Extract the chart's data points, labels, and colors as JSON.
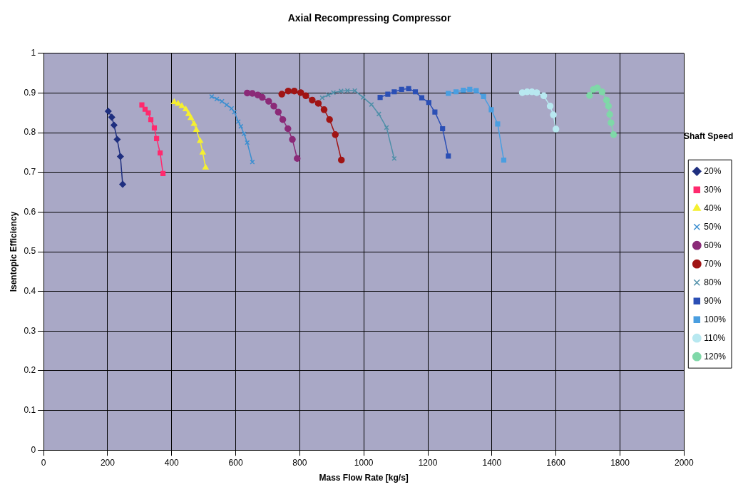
{
  "chart_data": {
    "type": "line",
    "title": "Axial Recompressing Compressor",
    "xlabel": "Mass Flow Rate [kg/s]",
    "ylabel": "Isentopic Efficiency",
    "legend_title": "Shaft Speed",
    "legend": "right",
    "grid": true,
    "xlim": [
      0,
      2000
    ],
    "xticks": [
      0,
      200,
      400,
      600,
      800,
      1000,
      1200,
      1400,
      1600,
      1800,
      2000
    ],
    "ylim": [
      0,
      1
    ],
    "yticks": [
      0,
      0.1,
      0.2,
      0.3,
      0.4,
      0.5,
      0.6,
      0.7,
      0.8,
      0.9,
      1
    ],
    "series": [
      {
        "name": "20%",
        "color": "#1f2f7f",
        "marker": "diamond",
        "x": [
          202,
          213,
          220,
          230,
          240,
          247
        ],
        "values": [
          0.854,
          0.839,
          0.819,
          0.783,
          0.74,
          0.67
        ]
      },
      {
        "name": "30%",
        "color": "#ff2a6e",
        "marker": "square",
        "x": [
          307,
          317,
          327,
          335,
          346,
          353,
          364,
          373
        ],
        "values": [
          0.87,
          0.859,
          0.85,
          0.833,
          0.812,
          0.785,
          0.749,
          0.697
        ]
      },
      {
        "name": "40%",
        "color": "#f5f030",
        "marker": "triangle",
        "x": [
          408,
          420,
          432,
          444,
          453,
          460,
          470,
          477,
          489,
          497,
          506
        ],
        "values": [
          0.877,
          0.873,
          0.867,
          0.859,
          0.847,
          0.837,
          0.822,
          0.807,
          0.779,
          0.75,
          0.712
        ]
      },
      {
        "name": "50%",
        "color": "#3c8fd0",
        "marker": "cross",
        "x": [
          525,
          541,
          557,
          572,
          587,
          596,
          608,
          616,
          626,
          636,
          652
        ],
        "values": [
          0.891,
          0.885,
          0.879,
          0.87,
          0.861,
          0.852,
          0.828,
          0.816,
          0.797,
          0.775,
          0.726
        ]
      },
      {
        "name": "60%",
        "color": "#8b2a78",
        "marker": "circle",
        "x": [
          636,
          652,
          669,
          683,
          703,
          719,
          733,
          747,
          763,
          777,
          792
        ],
        "values": [
          0.9,
          0.899,
          0.895,
          0.889,
          0.879,
          0.867,
          0.852,
          0.833,
          0.81,
          0.783,
          0.735
        ]
      },
      {
        "name": "70%",
        "color": "#a01414",
        "marker": "circle",
        "x": [
          744,
          764,
          783,
          803,
          819,
          839,
          858,
          876,
          893,
          911,
          930
        ],
        "values": [
          0.897,
          0.905,
          0.905,
          0.901,
          0.893,
          0.882,
          0.874,
          0.858,
          0.833,
          0.795,
          0.731
        ]
      },
      {
        "name": "80%",
        "color": "#4f8fa8",
        "marker": "cross",
        "x": [
          870,
          889,
          905,
          929,
          949,
          972,
          998,
          1024,
          1047,
          1071,
          1095
        ],
        "values": [
          0.888,
          0.895,
          0.901,
          0.905,
          0.906,
          0.906,
          0.889,
          0.871,
          0.847,
          0.813,
          0.735
        ]
      },
      {
        "name": "90%",
        "color": "#2b4fb5",
        "marker": "square",
        "x": [
          1051,
          1075,
          1095,
          1118,
          1140,
          1161,
          1181,
          1203,
          1222,
          1246,
          1264
        ],
        "values": [
          0.889,
          0.897,
          0.903,
          0.909,
          0.911,
          0.903,
          0.888,
          0.876,
          0.852,
          0.81,
          0.741
        ]
      },
      {
        "name": "100%",
        "color": "#4a9ee0",
        "marker": "square",
        "x": [
          1264,
          1288,
          1311,
          1331,
          1351,
          1374,
          1398,
          1418,
          1437
        ],
        "values": [
          0.899,
          0.903,
          0.907,
          0.909,
          0.906,
          0.891,
          0.858,
          0.822,
          0.731
        ]
      },
      {
        "name": "110%",
        "color": "#b8e8f0",
        "marker": "circle",
        "x": [
          1495,
          1510,
          1525,
          1540,
          1562,
          1582,
          1592,
          1600
        ],
        "values": [
          0.901,
          0.903,
          0.903,
          0.901,
          0.893,
          0.867,
          0.845,
          0.809
        ]
      },
      {
        "name": "120%",
        "color": "#7fd8a8",
        "marker": "circle",
        "x": [
          1705,
          1717,
          1729,
          1744,
          1758,
          1764,
          1768,
          1772,
          1780
        ],
        "values": [
          0.894,
          0.909,
          0.913,
          0.903,
          0.882,
          0.867,
          0.846,
          0.825,
          0.795
        ]
      }
    ]
  }
}
